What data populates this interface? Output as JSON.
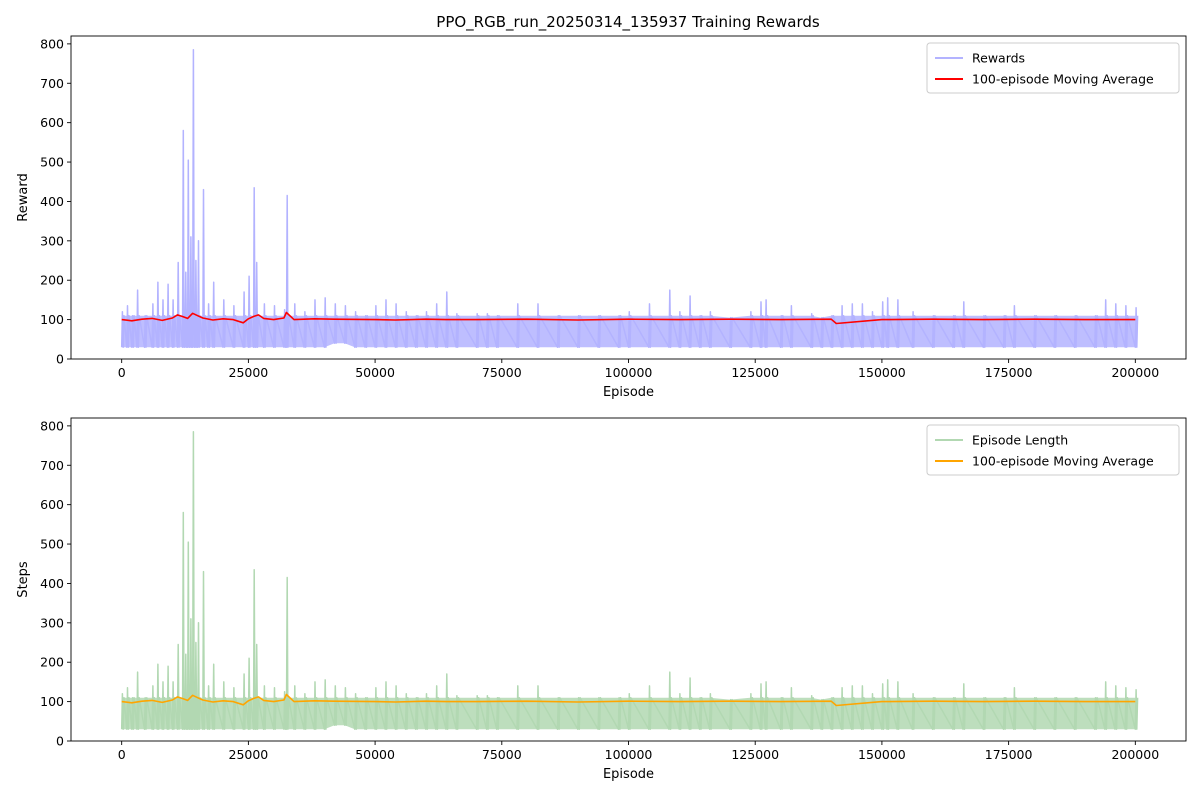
{
  "figure_title": "PPO_RGB_run_20250314_135937 Training Rewards",
  "chart_data": [
    {
      "type": "line",
      "title": "PPO_RGB_run_20250314_135937 Training Rewards",
      "xlabel": "Episode",
      "ylabel": "Reward",
      "xlim": [
        -10000,
        210000
      ],
      "ylim": [
        0,
        820
      ],
      "xticks": [
        0,
        25000,
        50000,
        75000,
        100000,
        125000,
        150000,
        175000,
        200000
      ],
      "xtick_labels": [
        "0",
        "25000",
        "50000",
        "75000",
        "100000",
        "125000",
        "150000",
        "175000",
        "200000"
      ],
      "yticks": [
        0,
        100,
        200,
        300,
        400,
        500,
        600,
        700,
        800
      ],
      "ytick_labels": [
        "0",
        "100",
        "200",
        "300",
        "400",
        "500",
        "600",
        "700",
        "800"
      ],
      "grid": false,
      "legend_position": "top-right",
      "colors": {
        "raw": "#b3b3ff",
        "average": "#ff0000"
      },
      "series": [
        {
          "name": "Rewards",
          "role": "raw",
          "color": "#b3b3ff",
          "x": [
            0,
            1000,
            2000,
            3000,
            4500,
            6000,
            7000,
            8000,
            9000,
            10000,
            11000,
            12000,
            12500,
            13000,
            13500,
            14000,
            14500,
            15000,
            16000,
            17000,
            18000,
            20000,
            22000,
            24000,
            25000,
            26000,
            26500,
            28000,
            30000,
            32000,
            32500,
            34000,
            36000,
            38000,
            40000,
            42000,
            44000,
            46000,
            48000,
            50000,
            52000,
            54000,
            56000,
            58000,
            60000,
            62000,
            64000,
            66000,
            70000,
            72000,
            74000,
            78000,
            82000,
            86000,
            90000,
            94000,
            98000,
            100000,
            104000,
            108000,
            110000,
            112000,
            114000,
            116000,
            120000,
            124000,
            126000,
            127000,
            130000,
            132000,
            136000,
            138000,
            140000,
            142000,
            144000,
            146000,
            148000,
            150000,
            151000,
            153000,
            156000,
            160000,
            164000,
            166000,
            170000,
            174000,
            176000,
            180000,
            184000,
            188000,
            192000,
            194000,
            196000,
            198000,
            200000
          ],
          "max": [
            120,
            135,
            110,
            175,
            110,
            140,
            195,
            150,
            190,
            150,
            245,
            580,
            220,
            505,
            310,
            785,
            250,
            300,
            430,
            140,
            195,
            150,
            135,
            170,
            210,
            435,
            245,
            140,
            135,
            125,
            415,
            140,
            120,
            150,
            155,
            140,
            135,
            120,
            110,
            135,
            150,
            140,
            120,
            110,
            120,
            140,
            170,
            115,
            115,
            115,
            110,
            140,
            140,
            110,
            110,
            110,
            110,
            120,
            140,
            175,
            120,
            160,
            110,
            120,
            105,
            120,
            145,
            150,
            110,
            135,
            115,
            105,
            110,
            135,
            140,
            140,
            120,
            145,
            155,
            150,
            120,
            110,
            110,
            145,
            110,
            110,
            135,
            110,
            110,
            110,
            110,
            150,
            140,
            135,
            130
          ],
          "min": [
            30,
            30,
            30,
            30,
            30,
            30,
            30,
            30,
            30,
            30,
            30,
            30,
            30,
            30,
            30,
            30,
            30,
            30,
            30,
            30,
            30,
            30,
            30,
            30,
            30,
            30,
            30,
            30,
            30,
            30,
            30,
            30,
            30,
            30,
            30,
            40,
            40,
            30,
            30,
            30,
            30,
            30,
            30,
            30,
            30,
            30,
            30,
            30,
            30,
            30,
            30,
            30,
            30,
            30,
            30,
            30,
            30,
            30,
            30,
            30,
            30,
            30,
            30,
            30,
            30,
            30,
            30,
            30,
            30,
            30,
            30,
            30,
            30,
            30,
            30,
            30,
            30,
            30,
            30,
            30,
            30,
            30,
            30,
            30,
            30,
            30,
            30,
            30,
            30,
            30,
            30,
            30,
            30,
            30,
            30
          ]
        },
        {
          "name": "100-episode Moving Average",
          "role": "average",
          "color": "#ff0000",
          "x": [
            0,
            2000,
            4000,
            6000,
            8000,
            10000,
            11000,
            12000,
            13000,
            14000,
            15000,
            16000,
            18000,
            20000,
            22000,
            24000,
            25000,
            26000,
            27000,
            28000,
            30000,
            32000,
            32500,
            34000,
            38000,
            42000,
            50000,
            54000,
            60000,
            64000,
            70000,
            80000,
            90000,
            100000,
            110000,
            120000,
            130000,
            140000,
            141000,
            150000,
            160000,
            170000,
            180000,
            190000,
            200000
          ],
          "y": [
            100,
            97,
            101,
            103,
            98,
            104,
            112,
            108,
            103,
            116,
            110,
            104,
            99,
            102,
            100,
            92,
            102,
            108,
            112,
            103,
            100,
            104,
            118,
            100,
            102,
            101,
            100,
            99,
            101,
            100,
            100,
            101,
            99,
            101,
            100,
            101,
            100,
            101,
            90,
            100,
            101,
            100,
            101,
            100,
            100
          ]
        }
      ]
    },
    {
      "type": "line",
      "title": "",
      "xlabel": "Episode",
      "ylabel": "Steps",
      "xlim": [
        -10000,
        210000
      ],
      "ylim": [
        0,
        820
      ],
      "xticks": [
        0,
        25000,
        50000,
        75000,
        100000,
        125000,
        150000,
        175000,
        200000
      ],
      "xtick_labels": [
        "0",
        "25000",
        "50000",
        "75000",
        "100000",
        "125000",
        "150000",
        "175000",
        "200000"
      ],
      "yticks": [
        0,
        100,
        200,
        300,
        400,
        500,
        600,
        700,
        800
      ],
      "ytick_labels": [
        "0",
        "100",
        "200",
        "300",
        "400",
        "500",
        "600",
        "700",
        "800"
      ],
      "grid": false,
      "legend_position": "top-right",
      "colors": {
        "raw": "#b2d8b2",
        "average": "#ffa500"
      },
      "series": [
        {
          "name": "Episode Length",
          "role": "raw",
          "color": "#b2d8b2",
          "x": [
            0,
            1000,
            2000,
            3000,
            4500,
            6000,
            7000,
            8000,
            9000,
            10000,
            11000,
            12000,
            12500,
            13000,
            13500,
            14000,
            14500,
            15000,
            16000,
            17000,
            18000,
            20000,
            22000,
            24000,
            25000,
            26000,
            26500,
            28000,
            30000,
            32000,
            32500,
            34000,
            36000,
            38000,
            40000,
            42000,
            44000,
            46000,
            48000,
            50000,
            52000,
            54000,
            56000,
            58000,
            60000,
            62000,
            64000,
            66000,
            70000,
            72000,
            74000,
            78000,
            82000,
            86000,
            90000,
            94000,
            98000,
            100000,
            104000,
            108000,
            110000,
            112000,
            114000,
            116000,
            120000,
            124000,
            126000,
            127000,
            130000,
            132000,
            136000,
            138000,
            140000,
            142000,
            144000,
            146000,
            148000,
            150000,
            151000,
            153000,
            156000,
            160000,
            164000,
            166000,
            170000,
            174000,
            176000,
            180000,
            184000,
            188000,
            192000,
            194000,
            196000,
            198000,
            200000
          ],
          "max": [
            120,
            135,
            110,
            175,
            110,
            140,
            195,
            150,
            190,
            150,
            245,
            580,
            220,
            505,
            310,
            785,
            250,
            300,
            430,
            140,
            195,
            150,
            135,
            170,
            210,
            435,
            245,
            140,
            135,
            125,
            415,
            140,
            120,
            150,
            155,
            140,
            135,
            120,
            110,
            135,
            150,
            140,
            120,
            110,
            120,
            140,
            170,
            115,
            115,
            115,
            110,
            140,
            140,
            110,
            110,
            110,
            110,
            120,
            140,
            175,
            120,
            160,
            110,
            120,
            105,
            120,
            145,
            150,
            110,
            135,
            115,
            105,
            110,
            135,
            140,
            140,
            120,
            145,
            155,
            150,
            120,
            110,
            110,
            145,
            110,
            110,
            135,
            110,
            110,
            110,
            110,
            150,
            140,
            135,
            130
          ],
          "min": [
            30,
            30,
            30,
            30,
            30,
            30,
            30,
            30,
            30,
            30,
            30,
            30,
            30,
            30,
            30,
            30,
            30,
            30,
            30,
            30,
            30,
            30,
            30,
            30,
            30,
            30,
            30,
            30,
            30,
            30,
            30,
            30,
            30,
            30,
            30,
            40,
            40,
            30,
            30,
            30,
            30,
            30,
            30,
            30,
            30,
            30,
            30,
            30,
            30,
            30,
            30,
            30,
            30,
            30,
            30,
            30,
            30,
            30,
            30,
            30,
            30,
            30,
            30,
            30,
            30,
            30,
            30,
            30,
            30,
            30,
            30,
            30,
            30,
            30,
            30,
            30,
            30,
            30,
            30,
            30,
            30,
            30,
            30,
            30,
            30,
            30,
            30,
            30,
            30,
            30,
            30,
            30,
            30,
            30,
            30
          ]
        },
        {
          "name": "100-episode Moving Average",
          "role": "average",
          "color": "#ffa500",
          "x": [
            0,
            2000,
            4000,
            6000,
            8000,
            10000,
            11000,
            12000,
            13000,
            14000,
            15000,
            16000,
            18000,
            20000,
            22000,
            24000,
            25000,
            26000,
            27000,
            28000,
            30000,
            32000,
            32500,
            34000,
            38000,
            42000,
            50000,
            54000,
            60000,
            64000,
            70000,
            80000,
            90000,
            100000,
            110000,
            120000,
            130000,
            140000,
            141000,
            150000,
            160000,
            170000,
            180000,
            190000,
            200000
          ],
          "y": [
            100,
            97,
            101,
            103,
            98,
            104,
            112,
            108,
            103,
            116,
            110,
            104,
            99,
            102,
            100,
            92,
            102,
            108,
            112,
            103,
            100,
            104,
            118,
            100,
            102,
            101,
            100,
            99,
            101,
            100,
            100,
            101,
            99,
            101,
            100,
            101,
            100,
            101,
            90,
            100,
            101,
            100,
            101,
            100,
            100
          ]
        }
      ]
    }
  ]
}
